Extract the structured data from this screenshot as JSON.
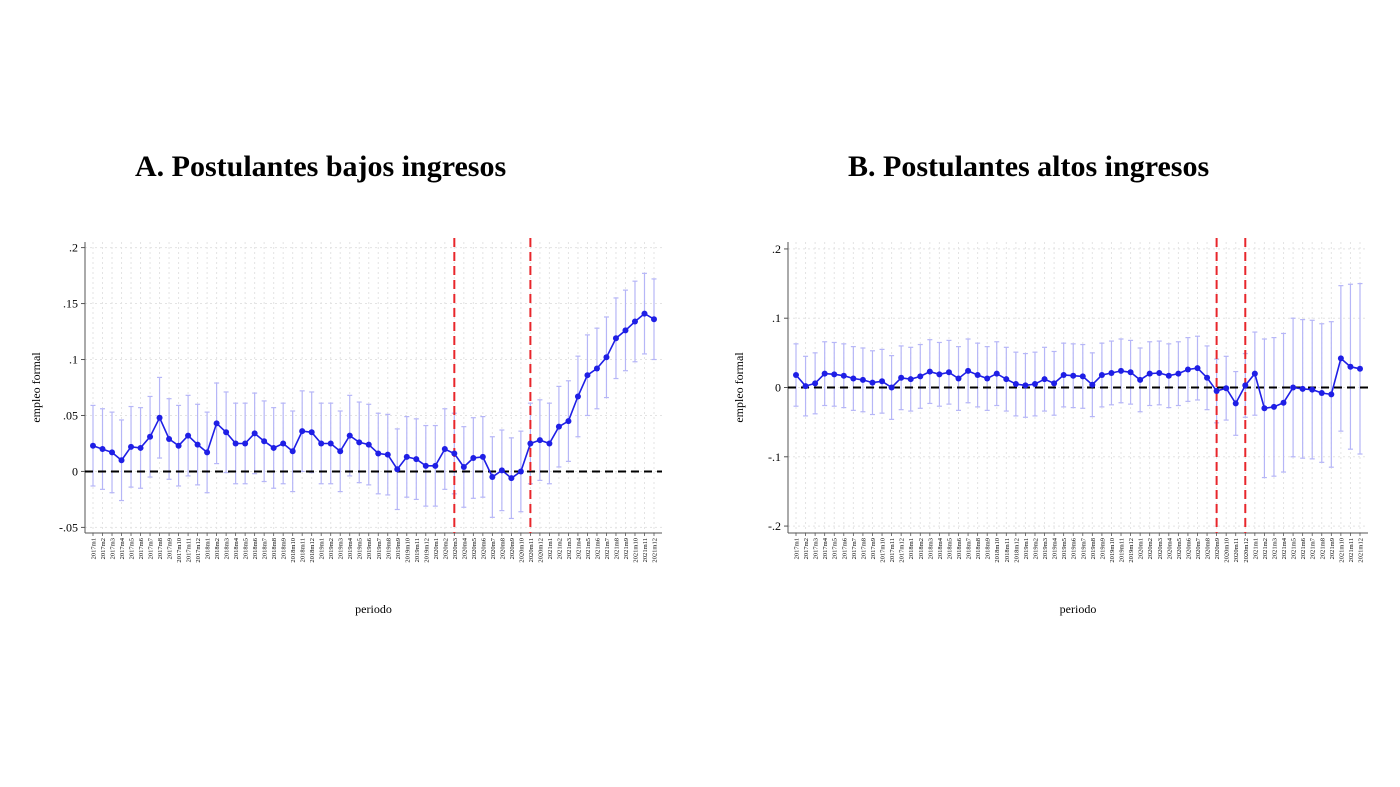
{
  "chart_data": [
    {
      "type": "line",
      "title": "A.  Postulantes bajos ingresos",
      "xlabel": "periodo",
      "ylabel": "empleo formal",
      "ylim": [
        -0.055,
        0.205
      ],
      "yticks": [
        -0.05,
        0,
        0.05,
        0.1,
        0.15,
        0.2
      ],
      "ytick_labels": [
        "-.05",
        "0",
        ".05",
        ".1",
        ".15",
        ".2"
      ],
      "x": [
        "2017m1",
        "2017m2",
        "2017m3",
        "2017m4",
        "2017m5",
        "2017m6",
        "2017m7",
        "2017m8",
        "2017m9",
        "2017m10",
        "2017m11",
        "2017m12",
        "2018m1",
        "2018m2",
        "2018m3",
        "2018m4",
        "2018m5",
        "2018m6",
        "2018m7",
        "2018m8",
        "2018m9",
        "2018m10",
        "2018m11",
        "2018m12",
        "2019m1",
        "2019m2",
        "2019m3",
        "2019m4",
        "2019m5",
        "2019m6",
        "2019m7",
        "2019m8",
        "2019m9",
        "2019m10",
        "2019m11",
        "2019m12",
        "2020m1",
        "2020m2",
        "2020m3",
        "2020m4",
        "2020m5",
        "2020m6",
        "2020m7",
        "2020m8",
        "2020m9",
        "2020m10",
        "2020m11",
        "2020m12",
        "2021m1",
        "2021m2",
        "2021m3",
        "2021m4",
        "2021m5",
        "2021m6",
        "2021m7",
        "2021m8",
        "2021m9",
        "2021m10",
        "2021m11",
        "2021m12"
      ],
      "series": [
        {
          "values": [
            0.023,
            0.02,
            0.017,
            0.01,
            0.022,
            0.021,
            0.031,
            0.048,
            0.029,
            0.023,
            0.032,
            0.024,
            0.017,
            0.043,
            0.035,
            0.025,
            0.025,
            0.034,
            0.027,
            0.021,
            0.025,
            0.018,
            0.036,
            0.035,
            0.025,
            0.025,
            0.018,
            0.032,
            0.026,
            0.024,
            0.016,
            0.015,
            0.002,
            0.013,
            0.011,
            0.005,
            0.005,
            0.02,
            0.016,
            0.004,
            0.012,
            0.013,
            -0.005,
            0.001,
            -0.006,
            0.0,
            0.025,
            0.028,
            0.025,
            0.04,
            0.045,
            0.067,
            0.086,
            0.092,
            0.102,
            0.119,
            0.126,
            0.134,
            0.141,
            0.136
          ],
          "ci_low": [
            -0.013,
            -0.016,
            -0.019,
            -0.026,
            -0.014,
            -0.015,
            -0.005,
            0.012,
            -0.007,
            -0.013,
            -0.004,
            -0.012,
            -0.019,
            0.007,
            -0.001,
            -0.011,
            -0.011,
            -0.002,
            -0.009,
            -0.015,
            -0.011,
            -0.018,
            0.0,
            -0.001,
            -0.011,
            -0.011,
            -0.018,
            -0.004,
            -0.01,
            -0.012,
            -0.02,
            -0.021,
            -0.034,
            -0.023,
            -0.025,
            -0.031,
            -0.031,
            -0.016,
            -0.02,
            -0.032,
            -0.024,
            -0.023,
            -0.041,
            -0.035,
            -0.042,
            -0.036,
            -0.011,
            -0.008,
            -0.011,
            0.004,
            0.009,
            0.031,
            0.05,
            0.056,
            0.066,
            0.083,
            0.09,
            0.098,
            0.105,
            0.1
          ],
          "ci_high": [
            0.059,
            0.056,
            0.053,
            0.046,
            0.058,
            0.057,
            0.067,
            0.084,
            0.065,
            0.059,
            0.068,
            0.06,
            0.053,
            0.079,
            0.071,
            0.061,
            0.061,
            0.07,
            0.063,
            0.057,
            0.061,
            0.054,
            0.072,
            0.071,
            0.061,
            0.061,
            0.054,
            0.068,
            0.062,
            0.06,
            0.052,
            0.051,
            0.038,
            0.049,
            0.047,
            0.041,
            0.041,
            0.056,
            0.052,
            0.04,
            0.048,
            0.049,
            0.031,
            0.037,
            0.03,
            0.036,
            0.061,
            0.064,
            0.061,
            0.076,
            0.081,
            0.103,
            0.122,
            0.128,
            0.138,
            0.155,
            0.162,
            0.17,
            0.177,
            0.172
          ]
        }
      ],
      "reference_line": 0,
      "vertical_lines": [
        "2020m3",
        "2020m11"
      ],
      "colors": {
        "series": "#1f1fe6",
        "ci": "#b6b6f7",
        "vline": "#e8262b",
        "hline": "#000000",
        "grid": "#e3e3e3"
      },
      "grid": true,
      "legend": "none"
    },
    {
      "type": "line",
      "title": "B.  Postulantes altos ingresos",
      "xlabel": "periodo",
      "ylabel": "empleo formal",
      "ylim": [
        -0.21,
        0.21
      ],
      "yticks": [
        -0.2,
        -0.1,
        0,
        0.1,
        0.2
      ],
      "ytick_labels": [
        "-.2",
        "-.1",
        "0",
        ".1",
        ".2"
      ],
      "x": [
        "2017m1",
        "2017m2",
        "2017m3",
        "2017m4",
        "2017m5",
        "2017m6",
        "2017m7",
        "2017m8",
        "2017m9",
        "2017m10",
        "2017m11",
        "2017m12",
        "2018m1",
        "2018m2",
        "2018m3",
        "2018m4",
        "2018m5",
        "2018m6",
        "2018m7",
        "2018m8",
        "2018m9",
        "2018m10",
        "2018m11",
        "2018m12",
        "2019m1",
        "2019m2",
        "2019m3",
        "2019m4",
        "2019m5",
        "2019m6",
        "2019m7",
        "2019m8",
        "2019m9",
        "2019m10",
        "2019m11",
        "2019m12",
        "2020m1",
        "2020m2",
        "2020m3",
        "2020m4",
        "2020m5",
        "2020m6",
        "2020m7",
        "2020m8",
        "2020m9",
        "2020m10",
        "2020m11",
        "2020m12",
        "2021m1",
        "2021m2",
        "2021m3",
        "2021m4",
        "2021m5",
        "2021m6",
        "2021m7",
        "2021m8",
        "2021m9",
        "2021m10",
        "2021m11",
        "2021m12"
      ],
      "series": [
        {
          "values": [
            0.018,
            0.002,
            0.006,
            0.02,
            0.019,
            0.017,
            0.013,
            0.011,
            0.007,
            0.009,
            0.0,
            0.014,
            0.012,
            0.016,
            0.023,
            0.019,
            0.022,
            0.013,
            0.024,
            0.018,
            0.013,
            0.02,
            0.012,
            0.005,
            0.003,
            0.005,
            0.012,
            0.006,
            0.018,
            0.017,
            0.016,
            0.004,
            0.018,
            0.021,
            0.024,
            0.022,
            0.011,
            0.02,
            0.021,
            0.017,
            0.02,
            0.026,
            0.028,
            0.014,
            -0.005,
            -0.001,
            -0.023,
            0.003,
            0.02,
            -0.03,
            -0.028,
            -0.022,
            0.0,
            -0.002,
            -0.003,
            -0.008,
            -0.01,
            0.042,
            0.03,
            0.027
          ],
          "ci_low": [
            -0.027,
            -0.041,
            -0.038,
            -0.026,
            -0.027,
            -0.029,
            -0.033,
            -0.035,
            -0.039,
            -0.037,
            -0.046,
            -0.032,
            -0.034,
            -0.03,
            -0.023,
            -0.027,
            -0.024,
            -0.033,
            -0.022,
            -0.028,
            -0.033,
            -0.026,
            -0.034,
            -0.041,
            -0.043,
            -0.041,
            -0.034,
            -0.04,
            -0.028,
            -0.029,
            -0.03,
            -0.042,
            -0.028,
            -0.025,
            -0.022,
            -0.024,
            -0.035,
            -0.026,
            -0.025,
            -0.029,
            -0.026,
            -0.02,
            -0.018,
            -0.032,
            -0.051,
            -0.047,
            -0.069,
            -0.043,
            -0.04,
            -0.13,
            -0.128,
            -0.122,
            -0.1,
            -0.102,
            -0.103,
            -0.108,
            -0.115,
            -0.063,
            -0.089,
            -0.096
          ],
          "ci_high": [
            0.063,
            0.045,
            0.05,
            0.066,
            0.065,
            0.063,
            0.059,
            0.057,
            0.053,
            0.055,
            0.046,
            0.06,
            0.058,
            0.062,
            0.069,
            0.065,
            0.068,
            0.059,
            0.07,
            0.064,
            0.059,
            0.066,
            0.058,
            0.051,
            0.049,
            0.051,
            0.058,
            0.052,
            0.064,
            0.063,
            0.062,
            0.05,
            0.064,
            0.067,
            0.07,
            0.068,
            0.057,
            0.066,
            0.067,
            0.063,
            0.066,
            0.072,
            0.074,
            0.06,
            0.041,
            0.045,
            0.023,
            0.049,
            0.08,
            0.07,
            0.072,
            0.078,
            0.1,
            0.098,
            0.097,
            0.092,
            0.095,
            0.147,
            0.149,
            0.15
          ]
        }
      ],
      "reference_line": 0,
      "vertical_lines": [
        "2020m9",
        "2020m12"
      ],
      "colors": {
        "series": "#1f1fe6",
        "ci": "#b6b6f7",
        "vline": "#e8262b",
        "hline": "#000000",
        "grid": "#e3e3e3"
      },
      "grid": true,
      "legend": "none"
    }
  ]
}
